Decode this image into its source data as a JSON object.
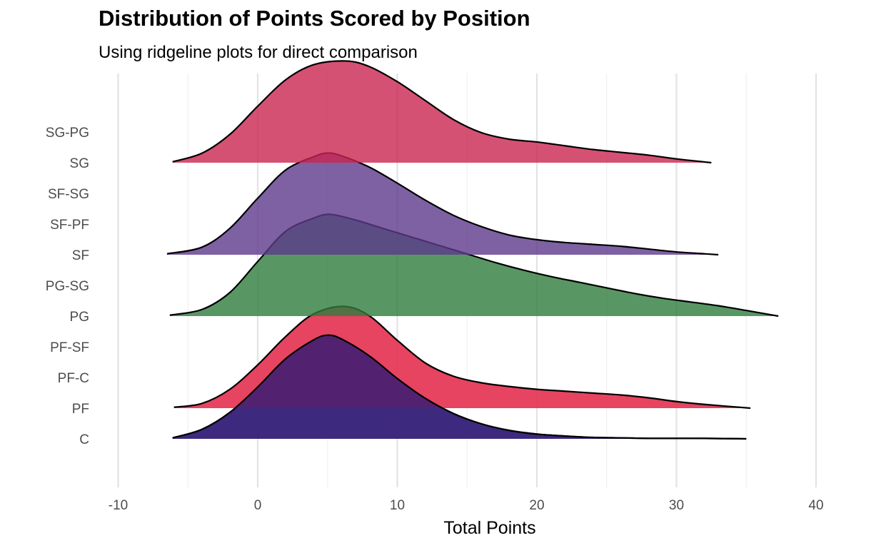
{
  "chart_data": {
    "type": "ridgeline",
    "title": "Distribution of Points Scored by Position",
    "subtitle": "Using ridgeline plots for direct comparison",
    "xlabel": "Total Points",
    "ylabel": "",
    "xlim": [
      -10,
      40
    ],
    "x_ticks": [
      "-10",
      "0",
      "10",
      "20",
      "30",
      "40"
    ],
    "x_tick_values": [
      -10,
      0,
      10,
      20,
      30,
      40
    ],
    "x_minor_values": [
      -5,
      5,
      15,
      25,
      35
    ],
    "categories": [
      "C",
      "PF",
      "PF-C",
      "PF-SF",
      "PG",
      "PG-SG",
      "SF",
      "SF-PF",
      "SF-SG",
      "SG",
      "SG-PG"
    ],
    "grid": true,
    "legend": "none",
    "series": [
      {
        "name": "C",
        "color": "#3a53a4",
        "opacity": 0.9,
        "x": [
          -6.1,
          -4,
          -2,
          0,
          2,
          4,
          5,
          6,
          8,
          10,
          12,
          14,
          16,
          18,
          20,
          22,
          24,
          26,
          28,
          30,
          32,
          35
        ],
        "height": [
          0.01,
          0.1,
          0.28,
          0.55,
          0.85,
          1.05,
          1.1,
          1.06,
          0.88,
          0.64,
          0.43,
          0.27,
          0.16,
          0.09,
          0.05,
          0.03,
          0.015,
          0.01,
          0.005,
          0.005,
          0.005,
          0.0
        ]
      },
      {
        "name": "PF",
        "color": "#e3304f",
        "opacity": 0.9,
        "x": [
          -6,
          -4,
          -2,
          0,
          2,
          4,
          6.2,
          8,
          10,
          12,
          14,
          16,
          18,
          20,
          22,
          24,
          26,
          28,
          30,
          32,
          35.3
        ],
        "height": [
          0.01,
          0.05,
          0.2,
          0.46,
          0.76,
          1.0,
          1.08,
          0.98,
          0.72,
          0.48,
          0.34,
          0.27,
          0.23,
          0.2,
          0.18,
          0.16,
          0.14,
          0.11,
          0.07,
          0.04,
          0.0
        ]
      },
      {
        "name": "PG",
        "color": "#2e7d3d",
        "opacity": 0.8,
        "x": [
          -6.3,
          -4,
          -2,
          0,
          2,
          4,
          5.2,
          7,
          9,
          11,
          13,
          15,
          17,
          19,
          21,
          23,
          25,
          27,
          29,
          31,
          33,
          35,
          37.3
        ],
        "height": [
          0.01,
          0.07,
          0.25,
          0.58,
          0.9,
          1.04,
          1.08,
          1.02,
          0.93,
          0.84,
          0.75,
          0.66,
          0.57,
          0.49,
          0.42,
          0.36,
          0.3,
          0.24,
          0.19,
          0.15,
          0.11,
          0.06,
          0.0
        ]
      },
      {
        "name": "SF",
        "color": "#5e3a8c",
        "opacity": 0.8,
        "x": [
          -6.5,
          -4,
          -2,
          0,
          2,
          4,
          5,
          6,
          8,
          10,
          12,
          14,
          16,
          18,
          20,
          22,
          24,
          26,
          28,
          30,
          32,
          33
        ],
        "height": [
          0.01,
          0.08,
          0.28,
          0.6,
          0.9,
          1.04,
          1.08,
          1.05,
          0.93,
          0.76,
          0.58,
          0.42,
          0.3,
          0.21,
          0.16,
          0.13,
          0.11,
          0.09,
          0.06,
          0.03,
          0.01,
          0.0
        ]
      },
      {
        "name": "SG",
        "color": "#cb2550",
        "opacity": 0.8,
        "x": [
          -6.1,
          -4,
          -2,
          0,
          2,
          4,
          6.3,
          8,
          10,
          12,
          14,
          16,
          18,
          20,
          22,
          24,
          26,
          28,
          30,
          32.5
        ],
        "height": [
          0.01,
          0.1,
          0.3,
          0.6,
          0.88,
          1.04,
          1.08,
          1.02,
          0.86,
          0.66,
          0.46,
          0.32,
          0.25,
          0.22,
          0.18,
          0.14,
          0.11,
          0.08,
          0.04,
          0.0
        ]
      },
      {
        "name": "PF",
        "color": "#3b1f74",
        "opacity": 0.85,
        "x": [
          -6.1,
          -4,
          -2,
          0,
          2,
          4,
          5,
          6,
          8,
          10,
          12,
          14,
          16,
          18,
          20,
          22,
          24,
          26,
          28,
          30,
          32,
          35
        ],
        "height": [
          0.01,
          0.1,
          0.28,
          0.55,
          0.85,
          1.05,
          1.1,
          1.06,
          0.88,
          0.64,
          0.43,
          0.27,
          0.16,
          0.09,
          0.05,
          0.03,
          0.015,
          0.01,
          0.005,
          0.005,
          0.005,
          0.0
        ],
        "baseline_category": "C"
      }
    ]
  }
}
